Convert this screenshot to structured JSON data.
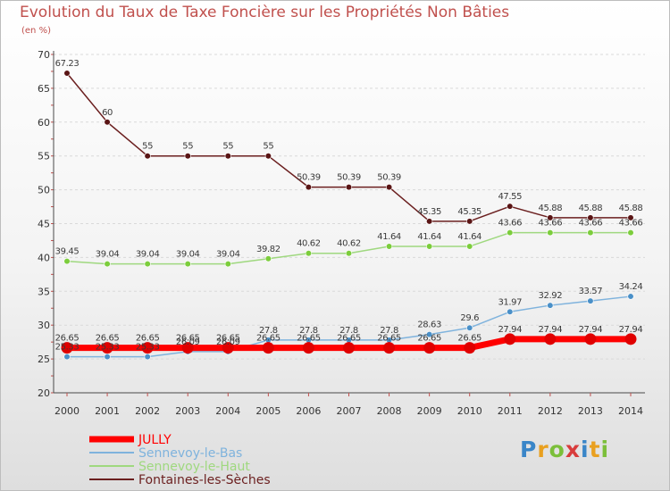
{
  "header": {
    "title": "Evolution du Taux de Taxe Foncière sur les Propriétés Non Bâties",
    "unit": "(en %)"
  },
  "logo": {
    "text": "Proxiti"
  },
  "colors": {
    "title": "#c0504d",
    "axis": "#4a4a4a",
    "tick_mark": "#c0504d",
    "grid": "#d9d9d9"
  },
  "chart_data": {
    "type": "line",
    "title": "Evolution du Taux de Taxe Foncière sur les Propriétés Non Bâties",
    "xlabel": "",
    "ylabel": "(en %)",
    "x": [
      "2000",
      "2001",
      "2002",
      "2003",
      "2004",
      "2005",
      "2006",
      "2007",
      "2008",
      "2009",
      "2010",
      "2011",
      "2012",
      "2013",
      "2014"
    ],
    "ylim": [
      20,
      70
    ],
    "yticks": [
      20,
      25,
      30,
      35,
      40,
      45,
      50,
      55,
      60,
      65,
      70
    ],
    "grid": "horizontal dashed",
    "legend_position": "bottom-left",
    "series": [
      {
        "name": "Fontaines-les-Sèches",
        "color": "#6b1f1f",
        "point_color": "#5a1515",
        "values": [
          67.23,
          60,
          55,
          55,
          55,
          55,
          50.39,
          50.39,
          50.39,
          45.35,
          45.35,
          47.55,
          45.88,
          45.88,
          45.88
        ],
        "labels": [
          "67.23",
          "60",
          "55",
          "55",
          "55",
          "55",
          "50.39",
          "50.39",
          "50.39",
          "45.35",
          "45.35",
          "47.55",
          "45.88",
          "45.88",
          "45.88"
        ]
      },
      {
        "name": "Sennevoy-le-Haut",
        "color": "#9fd87f",
        "point_color": "#7ccd3c",
        "values": [
          39.45,
          39.04,
          39.04,
          39.04,
          39.04,
          39.82,
          40.62,
          40.62,
          41.64,
          41.64,
          41.64,
          43.66,
          43.66,
          43.66,
          43.66
        ],
        "labels": [
          "39.45",
          "39.04",
          "39.04",
          "39.04",
          "39.04",
          "39.82",
          "40.62",
          "40.62",
          "41.64",
          "41.64",
          "41.64",
          "43.66",
          "43.66",
          "43.66",
          "43.66"
        ]
      },
      {
        "name": "Sennevoy-le-Bas",
        "color": "#7fb3dd",
        "point_color": "#4a90c8",
        "values": [
          25.33,
          25.33,
          25.33,
          26.09,
          26.09,
          27.8,
          27.8,
          27.8,
          27.8,
          28.63,
          29.6,
          31.97,
          32.92,
          33.57,
          34.24
        ],
        "labels": [
          "25.33",
          "25.33",
          "25.33",
          "26.09",
          "26.09",
          "27.8",
          "27.8",
          "27.8",
          "27.8",
          "28.63",
          "29.6",
          "31.97",
          "32.92",
          "33.57",
          "34.24"
        ]
      },
      {
        "name": "JULLY",
        "color": "#ff0000",
        "point_color": "#e00000",
        "values": [
          26.65,
          26.65,
          26.65,
          26.65,
          26.65,
          26.65,
          26.65,
          26.65,
          26.65,
          26.65,
          26.65,
          27.94,
          27.94,
          27.94,
          27.94
        ],
        "labels": [
          "26.65",
          "26.65",
          "26.65",
          "26.65",
          "26.65",
          "26.65",
          "26.65",
          "26.65",
          "26.65",
          "26.65",
          "26.65",
          "27.94",
          "27.94",
          "27.94",
          "27.94"
        ]
      }
    ],
    "legend": [
      {
        "name": "JULLY",
        "color": "#ff0000"
      },
      {
        "name": "Sennevoy-le-Bas",
        "color": "#7fb3dd"
      },
      {
        "name": "Sennevoy-le-Haut",
        "color": "#9fd87f"
      },
      {
        "name": "Fontaines-les-Sèches",
        "color": "#6b1f1f"
      }
    ]
  }
}
